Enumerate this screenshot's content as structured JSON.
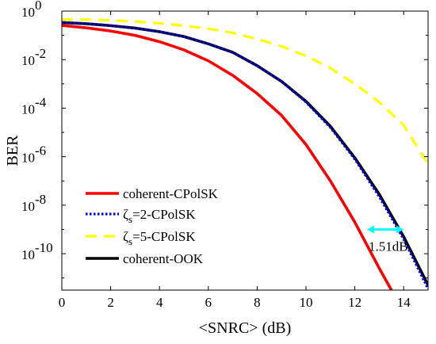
{
  "chart_data": {
    "type": "line",
    "xlabel": "<SNRC> (dB)",
    "ylabel": "BER",
    "xlim": [
      0,
      15
    ],
    "ylim_log10": [
      -11.5,
      0
    ],
    "y_scale": "log",
    "grid": false,
    "legend_position": "bottom-left",
    "x_ticks": [
      0,
      2,
      4,
      6,
      8,
      10,
      12,
      14
    ],
    "x_tick_labels": [
      "0",
      "2",
      "4",
      "6",
      "8",
      "10",
      "12",
      "14"
    ],
    "y_ticks_log10": [
      0,
      -2,
      -4,
      -6,
      -8,
      -10
    ],
    "y_tick_labels": [
      {
        "base": "10",
        "exp": "0"
      },
      {
        "base": "10",
        "exp": "-2"
      },
      {
        "base": "10",
        "exp": "-4"
      },
      {
        "base": "10",
        "exp": "-6"
      },
      {
        "base": "10",
        "exp": "-8"
      },
      {
        "base": "10",
        "exp": "-10"
      }
    ],
    "series": [
      {
        "name": "coherent-CPolSK",
        "color": "#ff0000",
        "style": "solid",
        "x": [
          0,
          1,
          2,
          3,
          4,
          5,
          6,
          7,
          8,
          9,
          10,
          11,
          12,
          13,
          13.5
        ],
        "log10_y": [
          -0.59,
          -0.69,
          -0.82,
          -1.0,
          -1.26,
          -1.6,
          -2.05,
          -2.65,
          -3.4,
          -4.3,
          -5.5,
          -7.0,
          -8.7,
          -10.6,
          -11.5
        ]
      },
      {
        "name_parts": [
          "ζ",
          "s",
          "=2-CPolSK"
        ],
        "color": "#0000ff",
        "style": "dotted",
        "x": [
          0,
          1,
          2,
          3,
          4,
          5,
          6,
          7,
          8,
          9,
          10,
          11,
          12,
          13,
          14,
          15
        ],
        "log10_y": [
          -0.47,
          -0.52,
          -0.6,
          -0.7,
          -0.85,
          -1.05,
          -1.35,
          -1.7,
          -2.25,
          -2.9,
          -3.75,
          -4.8,
          -6.1,
          -7.65,
          -9.4,
          -11.45
        ]
      },
      {
        "name_parts": [
          "ζ",
          "s",
          "=5-CPolSK"
        ],
        "color": "#ffff00",
        "style": "dashed",
        "x": [
          0,
          1,
          2,
          3,
          4,
          5,
          6,
          7,
          8,
          9,
          10,
          11,
          12,
          13,
          14,
          15
        ],
        "log10_y": [
          -0.35,
          -0.35,
          -0.38,
          -0.43,
          -0.5,
          -0.6,
          -0.72,
          -0.9,
          -1.15,
          -1.45,
          -1.85,
          -2.35,
          -3.0,
          -3.75,
          -4.7,
          -6.3
        ]
      },
      {
        "name": "coherent-OOK",
        "color": "#000000",
        "style": "solid",
        "x": [
          0,
          1,
          2,
          3,
          4,
          5,
          6,
          7,
          8,
          9,
          10,
          11,
          12,
          13,
          14,
          15
        ],
        "log10_y": [
          -0.47,
          -0.52,
          -0.6,
          -0.7,
          -0.85,
          -1.05,
          -1.35,
          -1.7,
          -2.25,
          -2.9,
          -3.72,
          -4.75,
          -6.05,
          -7.55,
          -9.3,
          -11.3
        ]
      }
    ],
    "annotation": {
      "text": "1.51dB",
      "color": "#00ffff",
      "x_from": 12.5,
      "x_to": 14.0,
      "log10_y": -9.0
    }
  }
}
